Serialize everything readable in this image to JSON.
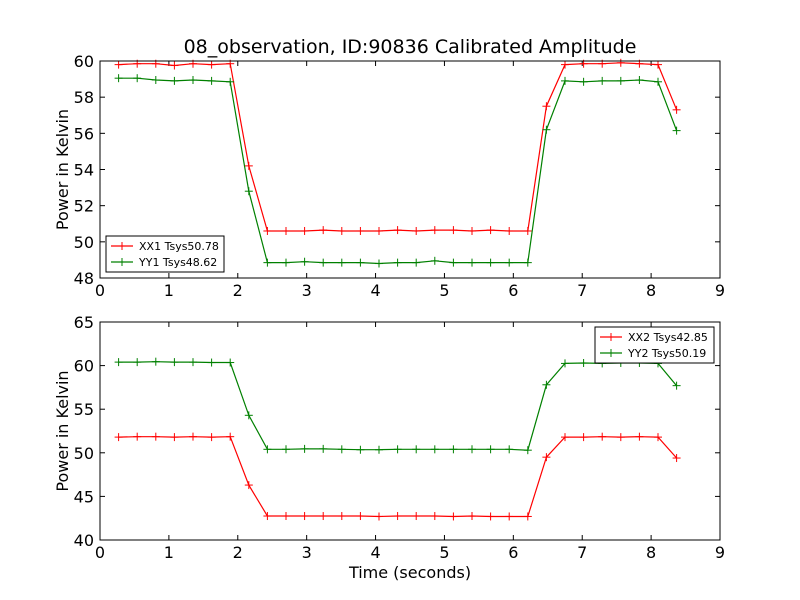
{
  "figure": {
    "title": "08_observation, ID:90836 Calibrated Amplitude",
    "xlabel": "Time (seconds)"
  },
  "chart_data": [
    {
      "type": "line",
      "title": "08_observation, ID:90836 Calibrated Amplitude",
      "xlabel": "",
      "ylabel": "Power in Kelvin",
      "xlim": [
        0,
        9
      ],
      "ylim": [
        48,
        60
      ],
      "xticks": [
        "0",
        "1",
        "2",
        "3",
        "4",
        "5",
        "6",
        "7",
        "8",
        "9"
      ],
      "yticks": [
        "48",
        "50",
        "52",
        "54",
        "56",
        "58",
        "60"
      ],
      "legend_position": "lower-left",
      "grid": false,
      "x": [
        0.27,
        0.54,
        0.81,
        1.08,
        1.35,
        1.62,
        1.89,
        2.16,
        2.43,
        2.7,
        2.97,
        3.24,
        3.51,
        3.78,
        4.05,
        4.32,
        4.59,
        4.86,
        5.13,
        5.4,
        5.67,
        5.94,
        6.21,
        6.48,
        6.75,
        7.02,
        7.29,
        7.56,
        7.83,
        8.1,
        8.37
      ],
      "series": [
        {
          "name": "XX1 Tsys50.78",
          "color": "#ff0000",
          "values": [
            59.8,
            59.85,
            59.85,
            59.75,
            59.85,
            59.8,
            59.85,
            54.2,
            50.6,
            50.6,
            50.6,
            50.65,
            50.6,
            50.6,
            50.6,
            50.65,
            50.6,
            50.65,
            50.65,
            50.6,
            50.65,
            50.6,
            50.6,
            57.5,
            59.8,
            59.85,
            59.85,
            59.9,
            59.85,
            59.8,
            57.3
          ]
        },
        {
          "name": "YY1 Tsys48.62",
          "color": "#008000",
          "values": [
            59.05,
            59.05,
            58.95,
            58.9,
            58.95,
            58.9,
            58.85,
            52.8,
            48.85,
            48.85,
            48.9,
            48.85,
            48.85,
            48.85,
            48.8,
            48.85,
            48.85,
            48.95,
            48.85,
            48.85,
            48.85,
            48.85,
            48.85,
            56.2,
            58.9,
            58.85,
            58.9,
            58.9,
            58.95,
            58.85,
            56.15
          ]
        }
      ]
    },
    {
      "type": "line",
      "title": "",
      "xlabel": "Time (seconds)",
      "ylabel": "Power in Kelvin",
      "xlim": [
        0,
        9
      ],
      "ylim": [
        40,
        65
      ],
      "xticks": [
        "0",
        "1",
        "2",
        "3",
        "4",
        "5",
        "6",
        "7",
        "8",
        "9"
      ],
      "yticks": [
        "40",
        "45",
        "50",
        "55",
        "60",
        "65"
      ],
      "legend_position": "upper-right",
      "grid": false,
      "x": [
        0.27,
        0.54,
        0.81,
        1.08,
        1.35,
        1.62,
        1.89,
        2.16,
        2.43,
        2.7,
        2.97,
        3.24,
        3.51,
        3.78,
        4.05,
        4.32,
        4.59,
        4.86,
        5.13,
        5.4,
        5.67,
        5.94,
        6.21,
        6.48,
        6.75,
        7.02,
        7.29,
        7.56,
        7.83,
        8.1,
        8.37
      ],
      "series": [
        {
          "name": "XX2 Tsys42.85",
          "color": "#ff0000",
          "values": [
            51.8,
            51.85,
            51.85,
            51.8,
            51.85,
            51.8,
            51.85,
            46.3,
            42.75,
            42.75,
            42.75,
            42.75,
            42.75,
            42.75,
            42.7,
            42.75,
            42.75,
            42.75,
            42.7,
            42.75,
            42.7,
            42.7,
            42.7,
            49.5,
            51.8,
            51.8,
            51.85,
            51.8,
            51.85,
            51.8,
            49.4
          ]
        },
        {
          "name": "YY2 Tsys50.19",
          "color": "#008000",
          "values": [
            60.4,
            60.4,
            60.45,
            60.4,
            60.4,
            60.35,
            60.35,
            54.3,
            50.4,
            50.4,
            50.45,
            50.45,
            50.4,
            50.35,
            50.35,
            50.4,
            50.4,
            50.4,
            50.4,
            50.4,
            50.4,
            50.4,
            50.3,
            57.8,
            60.25,
            60.3,
            60.25,
            60.3,
            60.3,
            60.25,
            57.7
          ]
        }
      ]
    }
  ]
}
